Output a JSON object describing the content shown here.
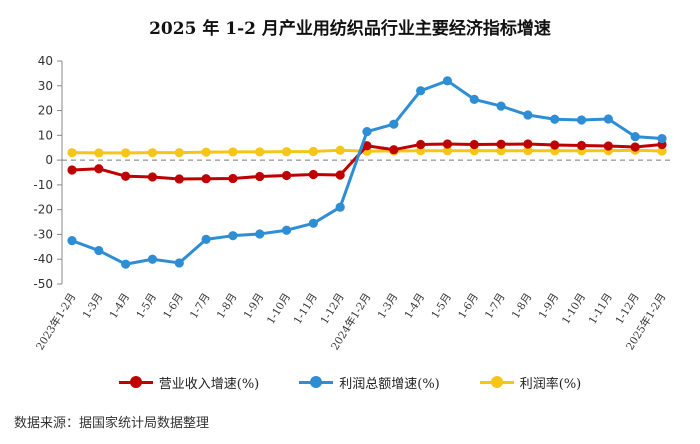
{
  "title": "2025 年 1-2 月产业用纺织品行业主要经济指标增速",
  "source": "数据来源：据国家统计局数据整理",
  "chart_data": {
    "type": "line",
    "categories": [
      "2023年1-2月",
      "1-3月",
      "1-4月",
      "1-5月",
      "1-6月",
      "1-7月",
      "1-8月",
      "1-9月",
      "1-10月",
      "1-11月",
      "1-12月",
      "2024年1-2月",
      "1-3月",
      "1-4月",
      "1-5月",
      "1-6月",
      "1-7月",
      "1-8月",
      "1-9月",
      "1-10月",
      "1-11月",
      "1-12月",
      "2025年1-2月"
    ],
    "ylim": [
      -50,
      40
    ],
    "yticks": [
      -50,
      -40,
      -30,
      -20,
      -10,
      0,
      10,
      20,
      30,
      40
    ],
    "grid": false,
    "zero_line": "dashed",
    "legend_position": "bottom",
    "series": [
      {
        "name": "营业收入增速(%)",
        "color": "#c00000",
        "values": [
          -4.0,
          -3.5,
          -6.5,
          -6.8,
          -7.6,
          -7.5,
          -7.4,
          -6.6,
          -6.2,
          -5.8,
          -6.0,
          5.8,
          4.2,
          6.3,
          6.5,
          6.3,
          6.4,
          6.5,
          6.1,
          5.9,
          5.7,
          5.3,
          6.3
        ]
      },
      {
        "name": "利润总额增速(%)",
        "color": "#2d8ed6",
        "values": [
          -32.5,
          -36.5,
          -42.0,
          -40.0,
          -41.5,
          -32.0,
          -30.5,
          -29.8,
          -28.3,
          -25.5,
          -19.0,
          11.5,
          14.5,
          28.0,
          32.0,
          24.5,
          21.8,
          18.2,
          16.5,
          16.2,
          16.6,
          9.5,
          8.7
        ]
      },
      {
        "name": "利润率(%)",
        "color": "#f5c518",
        "values": [
          3.0,
          2.9,
          2.9,
          3.0,
          3.0,
          3.2,
          3.3,
          3.3,
          3.4,
          3.5,
          4.0,
          3.6,
          3.7,
          3.8,
          3.8,
          3.8,
          3.8,
          3.8,
          3.8,
          3.8,
          3.8,
          4.0,
          3.7
        ]
      }
    ]
  }
}
